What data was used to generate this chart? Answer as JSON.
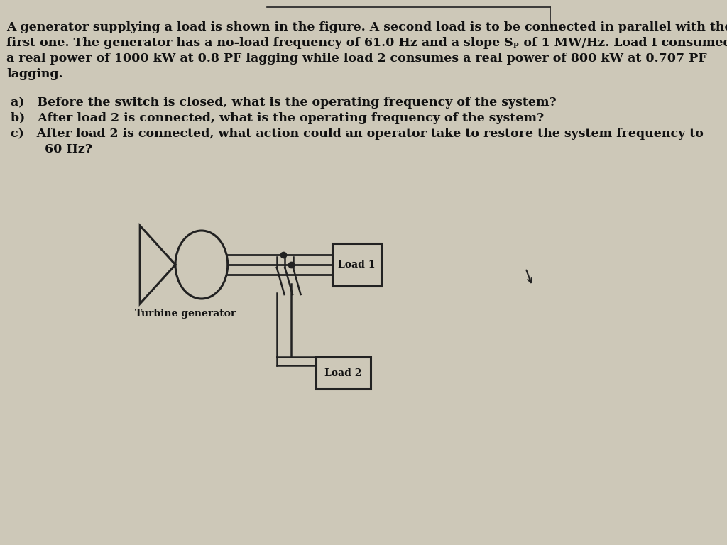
{
  "bg_color": "#cdc8b8",
  "text_color": "#111111",
  "para_line1": "A generator supplying a load is shown in the figure. A second load is to be connected in parallel with the",
  "para_line2": "first one. The generator has a no-load frequency of 61.0 Hz and a slope Sₚ of 1 MW/Hz. Load I consumed",
  "para_line3": "a real power of 1000 kW at 0.8 PF lagging while load 2 consumes a real power of 800 kW at 0.707 PF",
  "para_line4": "lagging.",
  "qa": "a)   Before the switch is closed, what is the operating frequency of the system?",
  "qb": "b)   After load 2 is connected, what is the operating frequency of the system?",
  "qc1": "c)   After load 2 is connected, what action could an operator take to restore the system frequency to",
  "qc2": "        60 Hz?",
  "label_turbine": "Turbine generator",
  "label_load1": "Load 1",
  "label_load2": "Load 2",
  "line_color": "#222222",
  "font_size_para": 12.5,
  "font_size_q": 12.5,
  "font_size_diagram": 10
}
